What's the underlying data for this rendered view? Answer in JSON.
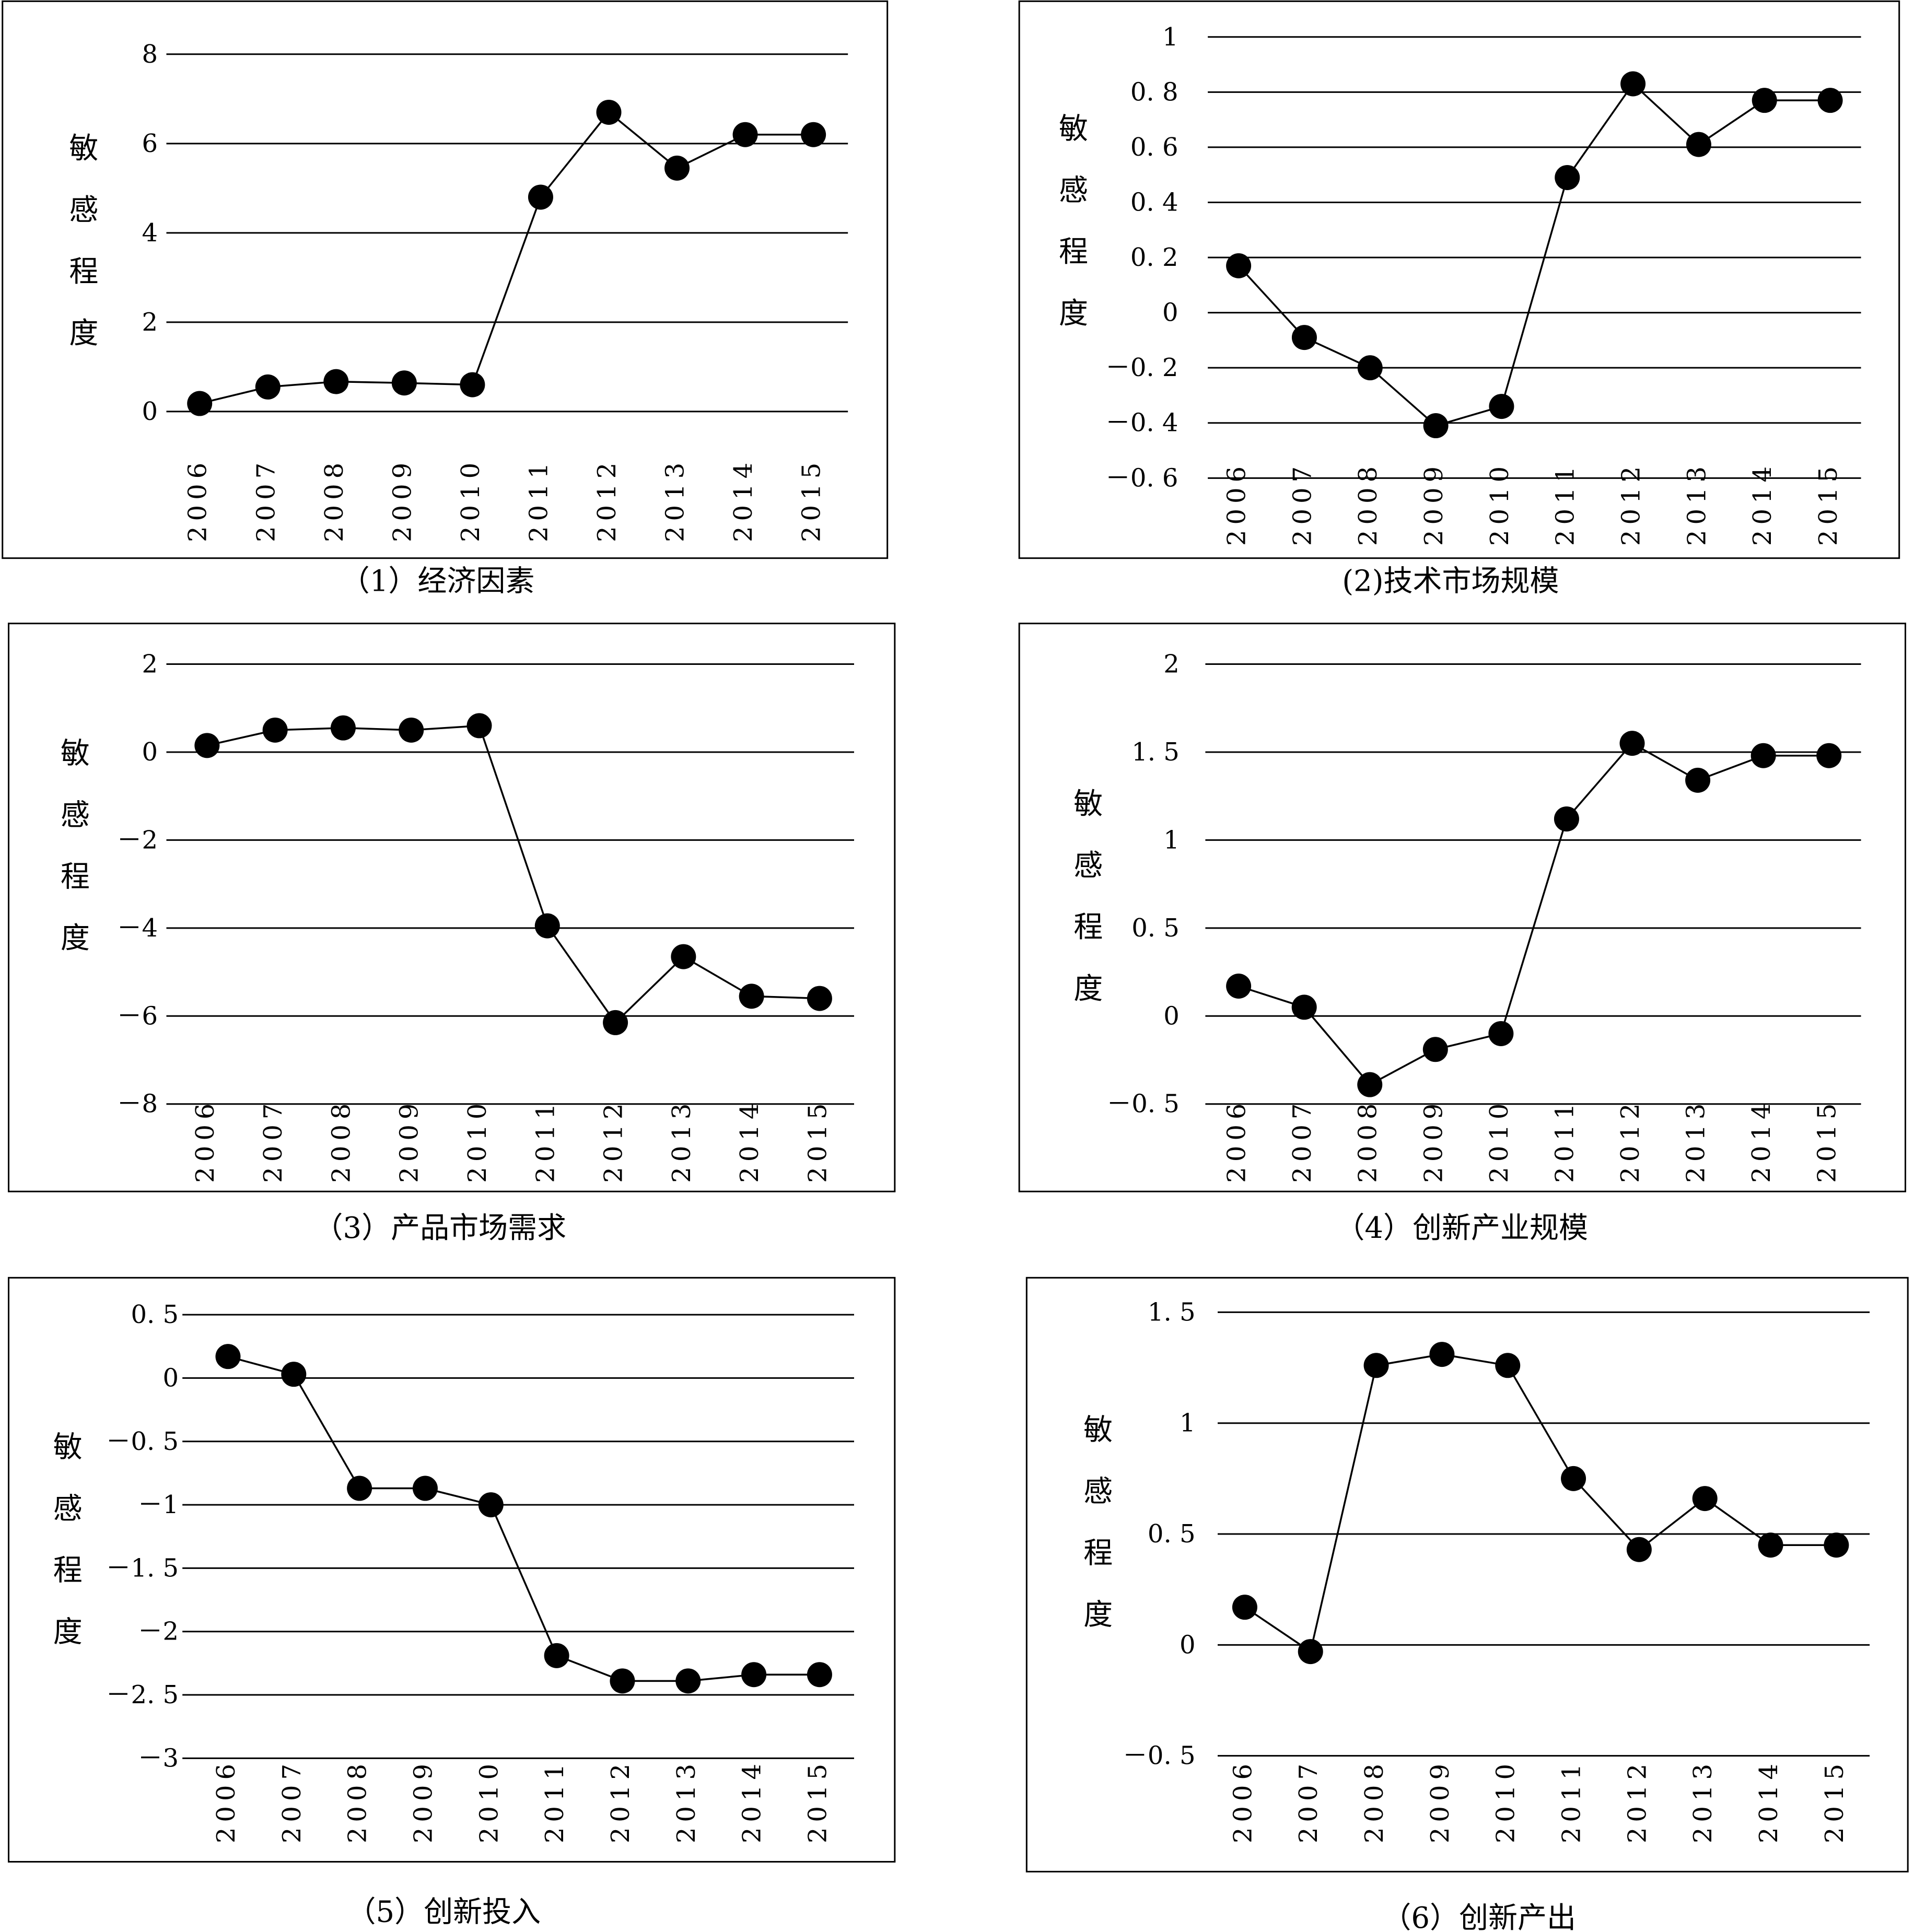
{
  "ylabel_chars": [
    "敏",
    "感",
    "程",
    "度"
  ],
  "chart_data": [
    {
      "type": "line",
      "caption": "（1）经济因素",
      "categories": [
        "2006",
        "2007",
        "2008",
        "2009",
        "2010",
        "2011",
        "2012",
        "2013",
        "2014",
        "2015"
      ],
      "values": [
        0.18,
        0.55,
        0.67,
        0.64,
        0.6,
        4.8,
        6.7,
        5.45,
        6.2,
        6.2
      ],
      "yticks": [
        0,
        2,
        4,
        6,
        8
      ],
      "ytick_labels": [
        "0",
        "2",
        "4",
        "6",
        "8"
      ],
      "ylim": [
        0,
        8
      ],
      "grid": true
    },
    {
      "type": "line",
      "caption": "(2)技术市场规模",
      "categories": [
        "2006",
        "2007",
        "2008",
        "2009",
        "2010",
        "2011",
        "2012",
        "2013",
        "2014",
        "2015"
      ],
      "values": [
        0.17,
        -0.09,
        -0.2,
        -0.41,
        -0.34,
        0.49,
        0.83,
        0.61,
        0.77,
        0.77
      ],
      "yticks": [
        -0.6,
        -0.4,
        -0.2,
        0,
        0.2,
        0.4,
        0.6,
        0.8,
        1
      ],
      "ytick_labels": [
        "－0. 6",
        "－0. 4",
        "－0. 2",
        "0",
        "0. 2",
        "0. 4",
        "0. 6",
        "0. 8",
        "1"
      ],
      "ylim": [
        -0.6,
        1
      ],
      "grid": true
    },
    {
      "type": "line",
      "caption": "（3）产品市场需求",
      "categories": [
        "2006",
        "2007",
        "2008",
        "2009",
        "2010",
        "2011",
        "2012",
        "2013",
        "2014",
        "2015"
      ],
      "values": [
        0.15,
        0.5,
        0.55,
        0.5,
        0.6,
        -3.95,
        -6.15,
        -4.65,
        -5.55,
        -5.6
      ],
      "yticks": [
        -8,
        -6,
        -4,
        -2,
        0,
        2
      ],
      "ytick_labels": [
        "－8",
        "－6",
        "－4",
        "－2",
        "0",
        "2"
      ],
      "ylim": [
        -8,
        2
      ],
      "grid": true
    },
    {
      "type": "line",
      "caption": "（4）创新产业规模",
      "categories": [
        "2006",
        "2007",
        "2008",
        "2009",
        "2010",
        "2011",
        "2012",
        "2013",
        "2014",
        "2015"
      ],
      "values": [
        0.17,
        0.05,
        -0.39,
        -0.19,
        -0.1,
        1.12,
        1.55,
        1.34,
        1.48,
        1.48
      ],
      "yticks": [
        -0.5,
        0,
        0.5,
        1,
        1.5,
        2
      ],
      "ytick_labels": [
        "－0. 5",
        "0",
        "0. 5",
        "1",
        "1. 5",
        "2"
      ],
      "ylim": [
        -0.5,
        2
      ],
      "grid": true
    },
    {
      "type": "line",
      "caption": "（5）创新投入",
      "categories": [
        "2006",
        "2007",
        "2008",
        "2009",
        "2010",
        "2011",
        "2012",
        "2013",
        "2014",
        "2015"
      ],
      "values": [
        0.17,
        0.03,
        -0.87,
        -0.87,
        -1.0,
        -2.19,
        -2.39,
        -2.39,
        -2.34,
        -2.34
      ],
      "yticks": [
        -3,
        -2.5,
        -2,
        -1.5,
        -1,
        -0.5,
        0,
        0.5
      ],
      "ytick_labels": [
        "－3",
        "－2. 5",
        "－2",
        "－1. 5",
        "－1",
        "－0. 5",
        "0",
        "0. 5"
      ],
      "ylim": [
        -3,
        0.5
      ],
      "grid": true
    },
    {
      "type": "line",
      "caption": "（6）创新产出",
      "categories": [
        "2006",
        "2007",
        "2008",
        "2009",
        "2010",
        "2011",
        "2012",
        "2013",
        "2014",
        "2015"
      ],
      "values": [
        0.17,
        -0.03,
        1.26,
        1.31,
        1.26,
        0.75,
        0.43,
        0.66,
        0.45,
        0.45
      ],
      "yticks": [
        -0.5,
        0,
        0.5,
        1,
        1.5
      ],
      "ytick_labels": [
        "－0. 5",
        "0",
        "0. 5",
        "1",
        "1. 5"
      ],
      "ylim": [
        -0.5,
        1.5
      ],
      "grid": true
    }
  ]
}
